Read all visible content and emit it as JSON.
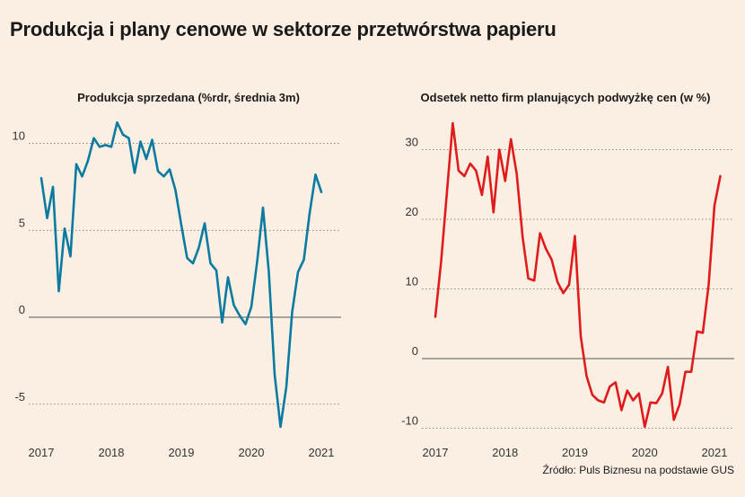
{
  "title": "Produkcja i plany cenowe w sektorze przetwórstwa papieru",
  "source": "Źródło: Puls Biznesu na podstawie GUS",
  "chart_data": [
    {
      "type": "line",
      "title": "Produkcja sprzedana (%rdr, średnia 3m)",
      "xlabel": "",
      "ylabel": "",
      "xlim": [
        2017.0,
        2021.2
      ],
      "ylim": [
        -7,
        11.5
      ],
      "yticks": [
        -5,
        0,
        5,
        10
      ],
      "xticks": [
        2017,
        2018,
        2019,
        2020,
        2021
      ],
      "grid": "horizontal dotted",
      "color": "#0a7aa0",
      "series": [
        {
          "x": [
            2017.0,
            2017.083,
            2017.167,
            2017.25,
            2017.333,
            2017.417,
            2017.5,
            2017.583,
            2017.667,
            2017.75,
            2017.833,
            2017.917,
            2018.0,
            2018.083,
            2018.167,
            2018.25,
            2018.333,
            2018.417,
            2018.5,
            2018.583,
            2018.667,
            2018.75,
            2018.833,
            2018.917,
            2019.0,
            2019.083,
            2019.167,
            2019.25,
            2019.333,
            2019.417,
            2019.5,
            2019.583,
            2019.667,
            2019.75,
            2019.833,
            2019.917,
            2020.0,
            2020.083,
            2020.167,
            2020.25,
            2020.333,
            2020.417,
            2020.5,
            2020.583,
            2020.667,
            2020.75,
            2020.833,
            2020.917,
            2021.0
          ],
          "values": [
            8.0,
            5.7,
            7.5,
            1.5,
            5.1,
            3.5,
            8.8,
            8.1,
            9.0,
            10.3,
            9.8,
            9.9,
            9.8,
            11.2,
            10.5,
            10.3,
            8.3,
            10.1,
            9.1,
            10.2,
            8.4,
            8.1,
            8.5,
            7.3,
            5.3,
            3.4,
            3.1,
            4.0,
            5.4,
            3.1,
            2.7,
            -0.3,
            2.3,
            0.7,
            0.1,
            -0.4,
            0.6,
            3.2,
            6.3,
            2.6,
            -3.3,
            -6.3,
            -4.0,
            0.3,
            2.6,
            3.3,
            6.0,
            8.2,
            7.2
          ]
        }
      ]
    },
    {
      "type": "line",
      "title": "Odsetek netto firm planujących podwyżkę cen (w %)",
      "xlabel": "",
      "ylabel": "",
      "xlim": [
        2017.0,
        2021.2
      ],
      "ylim": [
        -11,
        36
      ],
      "yticks": [
        -10,
        0,
        10,
        20,
        30
      ],
      "xticks": [
        2017,
        2018,
        2019,
        2020,
        2021
      ],
      "grid": "horizontal dotted",
      "color": "#e01b1b",
      "series": [
        {
          "x": [
            2017.0,
            2017.083,
            2017.167,
            2017.25,
            2017.333,
            2017.417,
            2017.5,
            2017.583,
            2017.667,
            2017.75,
            2017.833,
            2017.917,
            2018.0,
            2018.083,
            2018.167,
            2018.25,
            2018.333,
            2018.417,
            2018.5,
            2018.583,
            2018.667,
            2018.75,
            2018.833,
            2018.917,
            2019.0,
            2019.083,
            2019.167,
            2019.25,
            2019.333,
            2019.417,
            2019.5,
            2019.583,
            2019.667,
            2019.75,
            2019.833,
            2019.917,
            2020.0,
            2020.083,
            2020.167,
            2020.25,
            2020.333,
            2020.417,
            2020.5,
            2020.583,
            2020.667,
            2020.75,
            2020.833,
            2020.917,
            2021.0,
            2021.083
          ],
          "values": [
            6.0,
            14.0,
            24.0,
            33.8,
            27.0,
            26.2,
            28.0,
            27.0,
            23.5,
            29.0,
            21.0,
            30.0,
            25.5,
            31.5,
            26.5,
            17.5,
            11.5,
            11.2,
            18.0,
            15.8,
            14.2,
            11.0,
            9.4,
            10.6,
            17.6,
            3.2,
            -2.5,
            -5.2,
            -6.0,
            -6.3,
            -4.0,
            -3.4,
            -7.4,
            -4.6,
            -6.0,
            -5.0,
            -9.8,
            -6.3,
            -6.4,
            -5.0,
            -1.2,
            -8.8,
            -6.6,
            -1.9,
            -1.9,
            3.9,
            3.7,
            10.6,
            22.0,
            26.2
          ]
        }
      ]
    }
  ]
}
